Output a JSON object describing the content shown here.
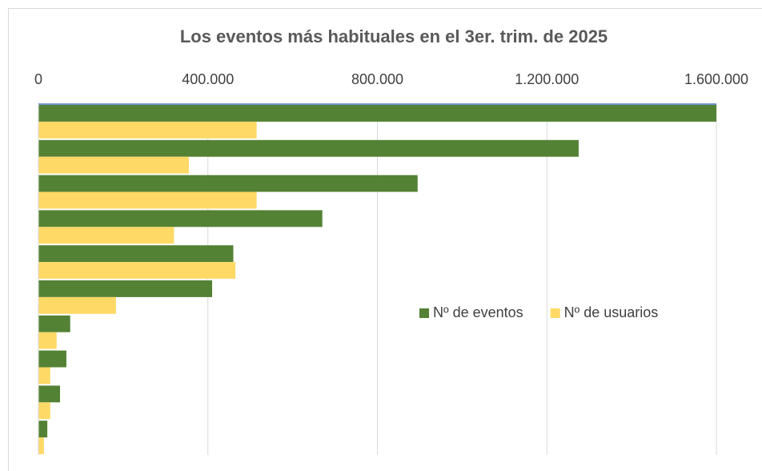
{
  "chart_data": {
    "type": "hbar",
    "title": "Los eventos más habituales en el 3er. trim. de 2025",
    "categories": [
      null,
      null,
      null,
      null,
      null,
      null,
      null,
      null,
      null,
      null
    ],
    "series": [
      {
        "name": "Nº de eventos",
        "color": "#548235",
        "values": [
          1600000,
          1275000,
          895000,
          670000,
          460000,
          410000,
          75000,
          66000,
          51000,
          21000
        ]
      },
      {
        "name": "Nº de usuarios",
        "color": "#ffd966",
        "values": [
          515000,
          355000,
          515000,
          320000,
          465000,
          183000,
          43000,
          28000,
          28000,
          13000
        ]
      }
    ],
    "xlim": [
      0,
      1600000
    ],
    "xticks": [
      0,
      {
        "value": 400000,
        "label": "400.000"
      },
      {
        "value": 800000,
        "label": "800.000"
      },
      {
        "value": 1200000,
        "label": "1.200.000"
      },
      {
        "value": 1600000,
        "label": "1.600.000"
      }
    ],
    "grid": true,
    "legend": "right"
  }
}
